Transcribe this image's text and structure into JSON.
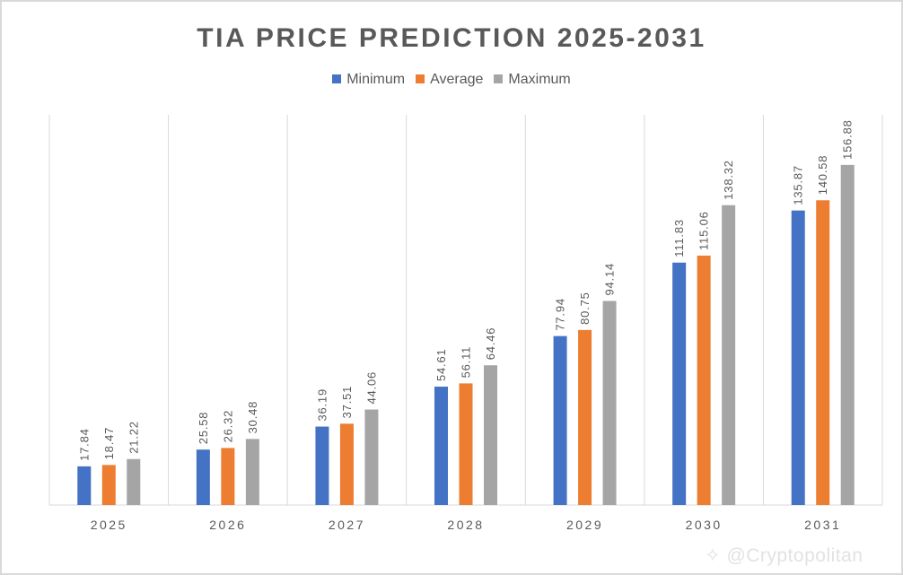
{
  "chart_data": {
    "type": "bar",
    "title": "TIA PRICE PREDICTION 2025-2031",
    "categories": [
      "2025",
      "2026",
      "2027",
      "2028",
      "2029",
      "2030",
      "2031"
    ],
    "series": [
      {
        "name": "Minimum",
        "color": "#4472c4",
        "values": [
          17.84,
          25.58,
          36.19,
          54.61,
          77.94,
          111.83,
          135.87
        ]
      },
      {
        "name": "Average",
        "color": "#ed7d31",
        "values": [
          18.47,
          26.32,
          37.51,
          56.11,
          80.75,
          115.06,
          140.58
        ]
      },
      {
        "name": "Maximum",
        "color": "#a5a5a5",
        "values": [
          21.22,
          30.48,
          44.06,
          64.46,
          94.14,
          138.32,
          156.88
        ]
      }
    ],
    "ylim": [
      0,
      180
    ],
    "legend": "top",
    "grid": "vertical category separators",
    "data_labels": "rotated above bars"
  },
  "watermark": "@Cryptopolitan"
}
